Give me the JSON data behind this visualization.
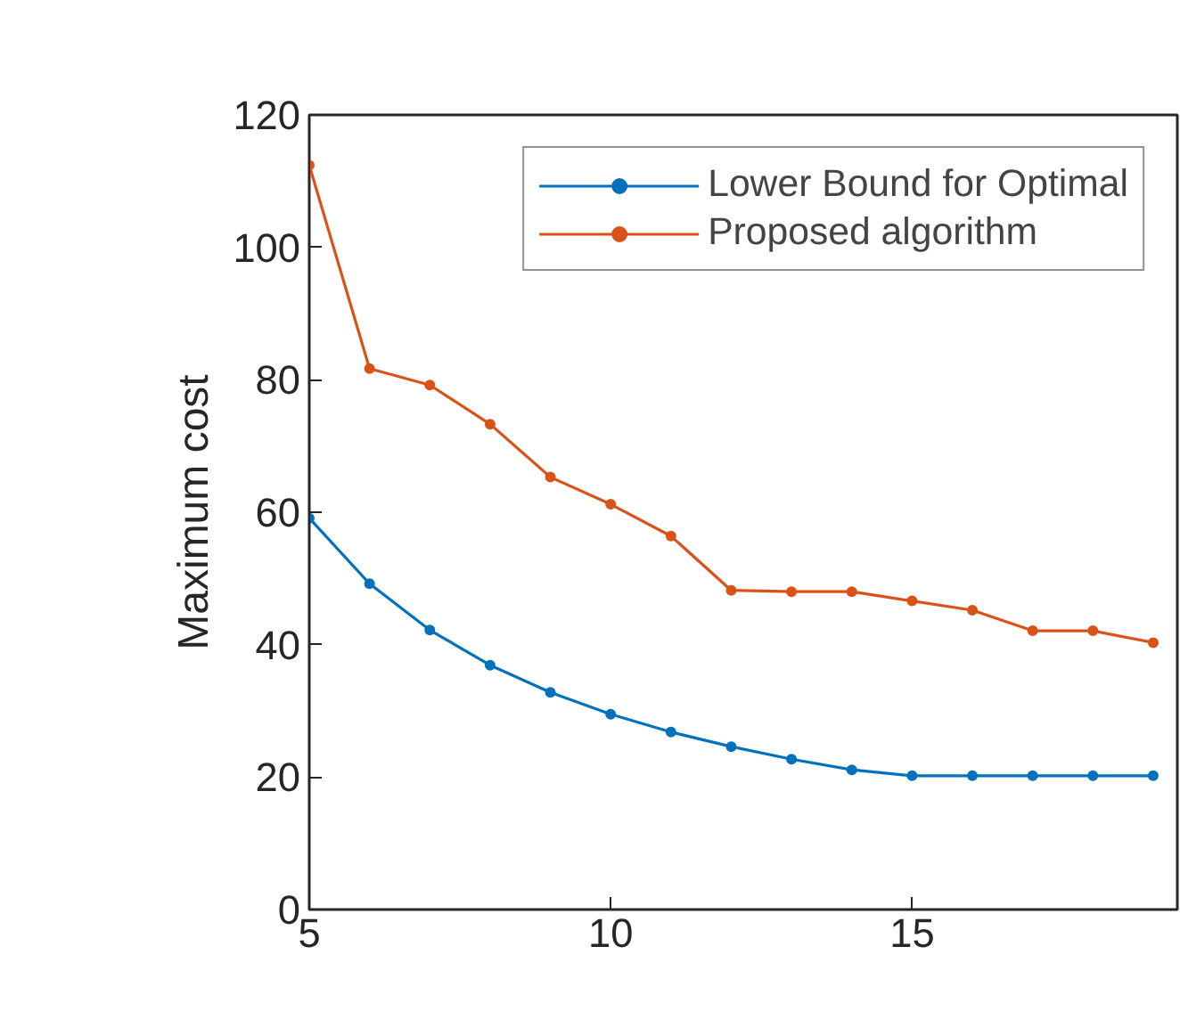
{
  "chart_data": {
    "type": "line",
    "ylabel": "Maximum cost",
    "x": [
      5,
      6,
      7,
      8,
      9,
      10,
      11,
      12,
      13,
      14,
      15,
      16,
      17,
      18,
      19
    ],
    "series": [
      {
        "name": "Lower Bound for Optimal",
        "color": "#0072bd",
        "values": [
          59.1,
          49.2,
          42.2,
          36.9,
          32.8,
          29.5,
          26.8,
          24.6,
          22.7,
          21.1,
          20.2,
          20.2,
          20.2,
          20.2,
          20.2
        ]
      },
      {
        "name": "Proposed algorithm",
        "color": "#d95319",
        "values": [
          112.4,
          81.7,
          79.2,
          73.3,
          65.3,
          61.2,
          56.4,
          48.2,
          48.0,
          48.0,
          46.6,
          45.2,
          42.1,
          42.1,
          40.3
        ]
      }
    ],
    "xlim": [
      5,
      19.4
    ],
    "ylim": [
      0,
      120
    ],
    "xticks": [
      5,
      10,
      15
    ],
    "yticks": [
      0,
      20,
      40,
      60,
      80,
      100,
      120
    ],
    "grid": false,
    "legend": "top right",
    "marker": "circle",
    "line_style": "solid"
  }
}
